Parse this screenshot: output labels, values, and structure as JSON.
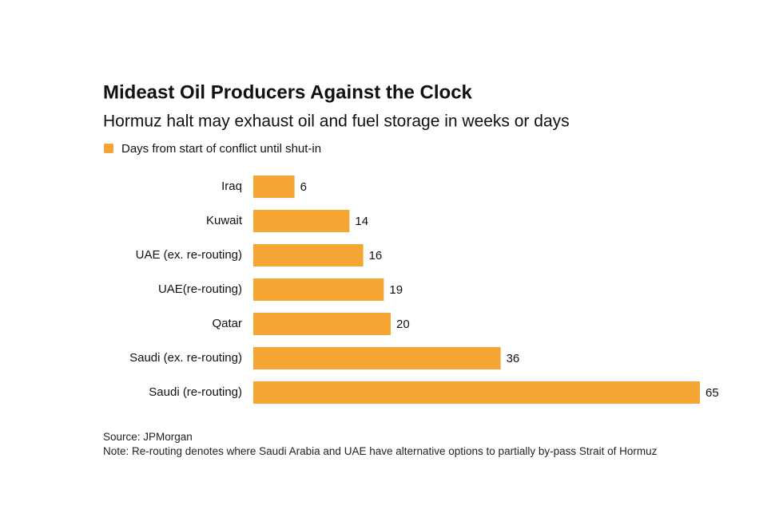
{
  "chart_data": {
    "type": "bar",
    "orientation": "horizontal",
    "title": "Mideast Oil Producers Against the Clock",
    "subtitle": "Hormuz halt may exhaust oil and fuel storage in weeks or days",
    "categories": [
      "Iraq",
      "Kuwait",
      "UAE (ex. re-routing)",
      "UAE(re-routing)",
      "Qatar",
      "Saudi (ex. re-routing)",
      "Saudi (re-routing)"
    ],
    "series": [
      {
        "name": "Days from start of conflict until shut-in",
        "color": "#f5a533",
        "values": [
          6,
          14,
          16,
          19,
          20,
          36,
          65
        ]
      }
    ],
    "source": "Source: JPMorgan",
    "note": "Note: Re-routing denotes where Saudi Arabia and UAE have alternative options to partially by-pass Strait of Hormuz"
  }
}
